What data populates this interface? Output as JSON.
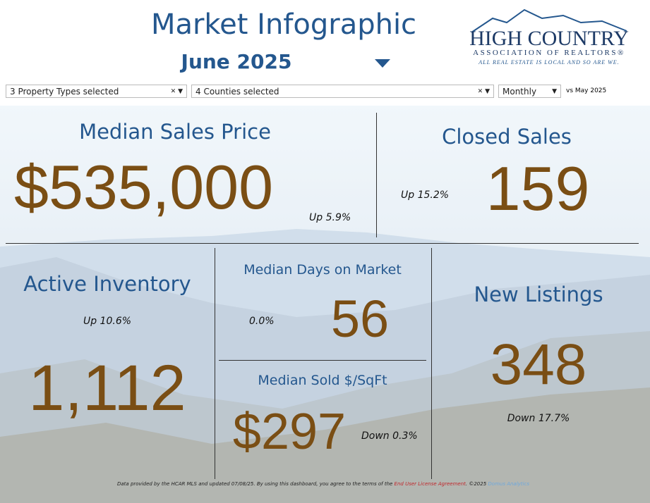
{
  "header": {
    "title": "Market Infographic",
    "period": "June 2025"
  },
  "logo": {
    "name": "HIGH COUNTRY",
    "subtitle": "ASSOCIATION OF REALTORS®",
    "tagline": "ALL REAL ESTATE IS LOCAL AND SO ARE WE."
  },
  "filters": {
    "property_types": "3 Property Types selected",
    "counties": "4 Counties selected",
    "interval": "Monthly",
    "comparison": "vs May 2025"
  },
  "metrics": {
    "median_sales_price": {
      "label": "Median Sales Price",
      "value": "$535,000",
      "change": "Up 5.9%"
    },
    "closed_sales": {
      "label": "Closed Sales",
      "value": "159",
      "change": "Up 15.2%"
    },
    "active_inventory": {
      "label": "Active Inventory",
      "value": "1,112",
      "change": "Up 10.6%"
    },
    "median_days_on_market": {
      "label": "Median Days on Market",
      "value": "56",
      "change": "0.0%"
    },
    "median_sold_per_sqft": {
      "label": "Median Sold $/SqFt",
      "value": "$297",
      "change": "Down 0.3%"
    },
    "new_listings": {
      "label": "New Listings",
      "value": "348",
      "change": "Down 17.7%"
    }
  },
  "footer": {
    "text": "Data provided by the HCAR MLS and updated 07/08/25.  By using this dashboard, you agree to the terms of the",
    "link": "End User License Agreement",
    "copyright": ".  ©2025",
    "credit": "Domus Analytics"
  }
}
